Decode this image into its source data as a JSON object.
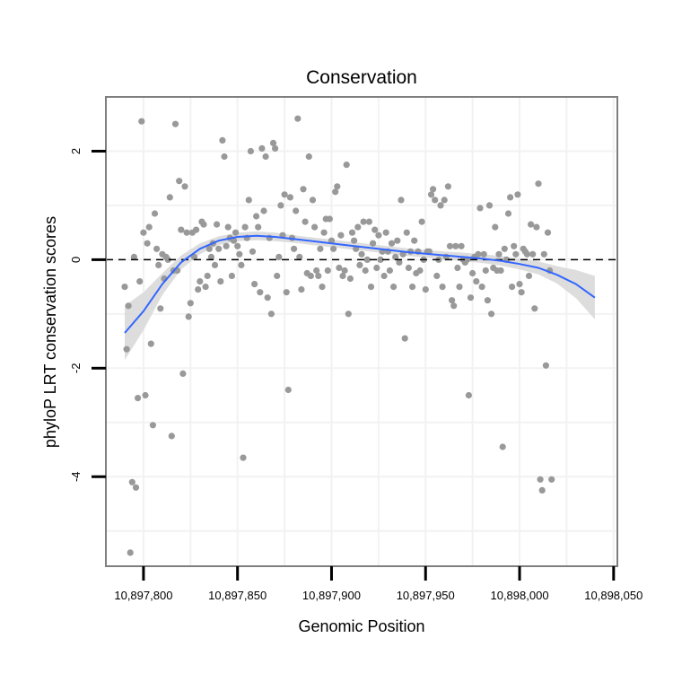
{
  "chart_data": {
    "type": "scatter",
    "title": "Conservation",
    "xlabel": "Genomic Position",
    "ylabel": "phyloP LRT conservation scores",
    "xlim": [
      10897780,
      10898052
    ],
    "ylim": [
      -5.65,
      3.0
    ],
    "x_ticks": [
      10897800,
      10897850,
      10897900,
      10897950,
      10898000,
      10898050
    ],
    "x_tick_labels": [
      "10,897,800",
      "10,897,850",
      "10,897,900",
      "10,897,950",
      "10,898,000",
      "10,898,050"
    ],
    "y_ticks": [
      -4,
      -2,
      0,
      2
    ],
    "y_tick_labels": [
      "-4",
      "-2",
      "0",
      "2"
    ],
    "reference_line": {
      "y": 0,
      "style": "dashed"
    },
    "grid": true,
    "colors": {
      "points": "#999999",
      "smooth": "#3366ff",
      "ribbon": "#d9d9d9",
      "frame": "#7f7f7f",
      "grid": "#f2f2f2"
    },
    "points": [
      [
        10897790,
        -0.5
      ],
      [
        10897791,
        -1.65
      ],
      [
        10897792,
        -0.85
      ],
      [
        10897793,
        -5.4
      ],
      [
        10897794,
        -4.1
      ],
      [
        10897795,
        0.05
      ],
      [
        10897796,
        -4.2
      ],
      [
        10897797,
        -2.55
      ],
      [
        10897798,
        -0.4
      ],
      [
        10897799,
        2.55
      ],
      [
        10897800,
        0.5
      ],
      [
        10897801,
        -2.5
      ],
      [
        10897802,
        0.3
      ],
      [
        10897803,
        0.6
      ],
      [
        10897804,
        -1.55
      ],
      [
        10897805,
        -3.05
      ],
      [
        10897806,
        0.85
      ],
      [
        10897807,
        0.2
      ],
      [
        10897808,
        -0.1
      ],
      [
        10897809,
        -0.9
      ],
      [
        10897810,
        0.1
      ],
      [
        10897811,
        -0.35
      ],
      [
        10897812,
        0.05
      ],
      [
        10897813,
        0.0
      ],
      [
        10897814,
        1.15
      ],
      [
        10897815,
        -3.25
      ],
      [
        10897816,
        -0.2
      ],
      [
        10897817,
        2.5
      ],
      [
        10897818,
        -0.2
      ],
      [
        10897819,
        1.45
      ],
      [
        10897820,
        0.55
      ],
      [
        10897821,
        -2.1
      ],
      [
        10897822,
        1.35
      ],
      [
        10897823,
        0.5
      ],
      [
        10897824,
        -1.05
      ],
      [
        10897825,
        -0.8
      ],
      [
        10897826,
        0.5
      ],
      [
        10897827,
        0.05
      ],
      [
        10897828,
        0.55
      ],
      [
        10897829,
        -0.55
      ],
      [
        10897830,
        -0.4
      ],
      [
        10897831,
        0.7
      ],
      [
        10897832,
        0.65
      ],
      [
        10897833,
        -0.5
      ],
      [
        10897834,
        -0.3
      ],
      [
        10897835,
        0.2
      ],
      [
        10897836,
        0.05
      ],
      [
        10897837,
        0.3
      ],
      [
        10897838,
        -0.1
      ],
      [
        10897839,
        0.65
      ],
      [
        10897840,
        0.2
      ],
      [
        10897841,
        -0.4
      ],
      [
        10897842,
        2.2
      ],
      [
        10897843,
        1.9
      ],
      [
        10897844,
        0.25
      ],
      [
        10897845,
        0.6
      ],
      [
        10897846,
        0.4
      ],
      [
        10897847,
        -0.3
      ],
      [
        10897848,
        0.35
      ],
      [
        10897849,
        0.5
      ],
      [
        10897850,
        0.25
      ],
      [
        10897851,
        0.1
      ],
      [
        10897852,
        -0.1
      ],
      [
        10897853,
        -3.65
      ],
      [
        10897854,
        0.6
      ],
      [
        10897855,
        0.4
      ],
      [
        10897856,
        1.1
      ],
      [
        10897857,
        2.0
      ],
      [
        10897858,
        0.15
      ],
      [
        10897859,
        -0.45
      ],
      [
        10897860,
        0.8
      ],
      [
        10897861,
        0.6
      ],
      [
        10897862,
        -0.6
      ],
      [
        10897863,
        2.05
      ],
      [
        10897864,
        0.9
      ],
      [
        10897865,
        1.9
      ],
      [
        10897866,
        -0.7
      ],
      [
        10897867,
        0.4
      ],
      [
        10897868,
        -1.0
      ],
      [
        10897869,
        2.15
      ],
      [
        10897870,
        2.05
      ],
      [
        10897871,
        -0.3
      ],
      [
        10897872,
        0.05
      ],
      [
        10897873,
        1.0
      ],
      [
        10897874,
        0.45
      ],
      [
        10897875,
        1.2
      ],
      [
        10897876,
        -0.6
      ],
      [
        10897877,
        -2.4
      ],
      [
        10897878,
        1.15
      ],
      [
        10897879,
        0.4
      ],
      [
        10897880,
        0.2
      ],
      [
        10897881,
        0.9
      ],
      [
        10897882,
        2.6
      ],
      [
        10897883,
        0.05
      ],
      [
        10897884,
        -0.55
      ],
      [
        10897885,
        1.3
      ],
      [
        10897886,
        0.7
      ],
      [
        10897887,
        -0.25
      ],
      [
        10897888,
        1.9
      ],
      [
        10897889,
        -0.3
      ],
      [
        10897890,
        1.1
      ],
      [
        10897891,
        0.6
      ],
      [
        10897892,
        -0.2
      ],
      [
        10897893,
        -0.3
      ],
      [
        10897894,
        0.2
      ],
      [
        10897895,
        -0.5
      ],
      [
        10897896,
        0.5
      ],
      [
        10897897,
        0.75
      ],
      [
        10897898,
        -0.2
      ],
      [
        10897899,
        0.75
      ],
      [
        10897900,
        0.35
      ],
      [
        10897901,
        0.2
      ],
      [
        10897902,
        1.25
      ],
      [
        10897903,
        1.35
      ],
      [
        10897904,
        -0.15
      ],
      [
        10897905,
        0.45
      ],
      [
        10897906,
        -0.3
      ],
      [
        10897907,
        -0.2
      ],
      [
        10897908,
        1.75
      ],
      [
        10897909,
        -1.0
      ],
      [
        10897910,
        -0.35
      ],
      [
        10897911,
        0.5
      ],
      [
        10897912,
        0.35
      ],
      [
        10897913,
        0.2
      ],
      [
        10897914,
        0.6
      ],
      [
        10897915,
        -0.1
      ],
      [
        10897916,
        0.1
      ],
      [
        10897917,
        0.7
      ],
      [
        10897918,
        -0.2
      ],
      [
        10897919,
        0.0
      ],
      [
        10897920,
        0.7
      ],
      [
        10897921,
        -0.5
      ],
      [
        10897922,
        0.3
      ],
      [
        10897923,
        0.55
      ],
      [
        10897924,
        -0.15
      ],
      [
        10897925,
        0.45
      ],
      [
        10897926,
        0.0
      ],
      [
        10897927,
        0.15
      ],
      [
        10897928,
        -0.3
      ],
      [
        10897929,
        0.5
      ],
      [
        10897930,
        0.15
      ],
      [
        10897931,
        -0.2
      ],
      [
        10897932,
        0.3
      ],
      [
        10897933,
        -0.5
      ],
      [
        10897934,
        0.05
      ],
      [
        10897935,
        0.35
      ],
      [
        10897936,
        -0.05
      ],
      [
        10897937,
        1.1
      ],
      [
        10897938,
        0.1
      ],
      [
        10897939,
        -1.45
      ],
      [
        10897940,
        0.5
      ],
      [
        10897941,
        -0.15
      ],
      [
        10897942,
        0.15
      ],
      [
        10897943,
        -0.5
      ],
      [
        10897944,
        0.35
      ],
      [
        10897945,
        -0.25
      ],
      [
        10897946,
        0.15
      ],
      [
        10897947,
        -0.2
      ],
      [
        10897948,
        0.7
      ],
      [
        10897949,
        0.0
      ],
      [
        10897950,
        -0.55
      ],
      [
        10897951,
        0.15
      ],
      [
        10897952,
        0.15
      ],
      [
        10897953,
        1.2
      ],
      [
        10897954,
        1.3
      ],
      [
        10897955,
        1.1
      ],
      [
        10897956,
        -0.3
      ],
      [
        10897957,
        0.0
      ],
      [
        10897958,
        1.0
      ],
      [
        10897959,
        -0.5
      ],
      [
        10897960,
        1.1
      ],
      [
        10897961,
        0.05
      ],
      [
        10897962,
        1.35
      ],
      [
        10897963,
        0.25
      ],
      [
        10897964,
        -0.75
      ],
      [
        10897965,
        -0.85
      ],
      [
        10897966,
        0.25
      ],
      [
        10897967,
        -0.15
      ],
      [
        10897968,
        -0.5
      ],
      [
        10897969,
        0.25
      ],
      [
        10897970,
        0.0
      ],
      [
        10897971,
        -0.05
      ],
      [
        10897972,
        0.0
      ],
      [
        10897973,
        -2.5
      ],
      [
        10897974,
        -0.7
      ],
      [
        10897975,
        -0.25
      ],
      [
        10897976,
        0.05
      ],
      [
        10897977,
        -0.4
      ],
      [
        10897978,
        0.1
      ],
      [
        10897979,
        0.95
      ],
      [
        10897980,
        -0.5
      ],
      [
        10897981,
        0.1
      ],
      [
        10897982,
        -0.2
      ],
      [
        10897983,
        -0.75
      ],
      [
        10897984,
        1.0
      ],
      [
        10897985,
        -1.0
      ],
      [
        10897986,
        -0.15
      ],
      [
        10897987,
        0.6
      ],
      [
        10897988,
        -0.2
      ],
      [
        10897989,
        0.1
      ],
      [
        10897990,
        -0.2
      ],
      [
        10897991,
        -3.45
      ],
      [
        10897992,
        0.2
      ],
      [
        10897993,
        0.0
      ],
      [
        10897994,
        0.85
      ],
      [
        10897995,
        1.15
      ],
      [
        10897996,
        -0.5
      ],
      [
        10897997,
        0.25
      ],
      [
        10897998,
        0.1
      ],
      [
        10897999,
        1.2
      ],
      [
        10898000,
        -0.45
      ],
      [
        10898001,
        -0.6
      ],
      [
        10898002,
        0.2
      ],
      [
        10898003,
        0.15
      ],
      [
        10898004,
        0.1
      ],
      [
        10898005,
        -0.3
      ],
      [
        10898006,
        0.65
      ],
      [
        10898007,
        0.1
      ],
      [
        10898008,
        -0.9
      ],
      [
        10898009,
        0.6
      ],
      [
        10898010,
        1.4
      ],
      [
        10898011,
        -4.05
      ],
      [
        10898012,
        -4.25
      ],
      [
        10898013,
        0.1
      ],
      [
        10898014,
        -1.95
      ],
      [
        10898015,
        0.5
      ],
      [
        10898016,
        -0.2
      ],
      [
        10898017,
        -4.05
      ]
    ],
    "smooth": {
      "x": [
        10897790,
        10897800,
        10897810,
        10897820,
        10897830,
        10897840,
        10897850,
        10897860,
        10897870,
        10897880,
        10897890,
        10897900,
        10897910,
        10897920,
        10897930,
        10897940,
        10897950,
        10897960,
        10897970,
        10897980,
        10897990,
        10898000,
        10898010,
        10898020,
        10898030,
        10898040
      ],
      "y": [
        -1.35,
        -0.95,
        -0.45,
        -0.05,
        0.2,
        0.35,
        0.42,
        0.44,
        0.42,
        0.38,
        0.34,
        0.3,
        0.26,
        0.22,
        0.18,
        0.14,
        0.11,
        0.08,
        0.05,
        0.02,
        -0.02,
        -0.08,
        -0.15,
        -0.28,
        -0.45,
        -0.7
      ],
      "se": [
        0.5,
        0.35,
        0.2,
        0.13,
        0.1,
        0.08,
        0.08,
        0.08,
        0.08,
        0.07,
        0.07,
        0.07,
        0.07,
        0.07,
        0.07,
        0.07,
        0.07,
        0.07,
        0.08,
        0.08,
        0.09,
        0.1,
        0.12,
        0.16,
        0.26,
        0.4
      ]
    }
  }
}
